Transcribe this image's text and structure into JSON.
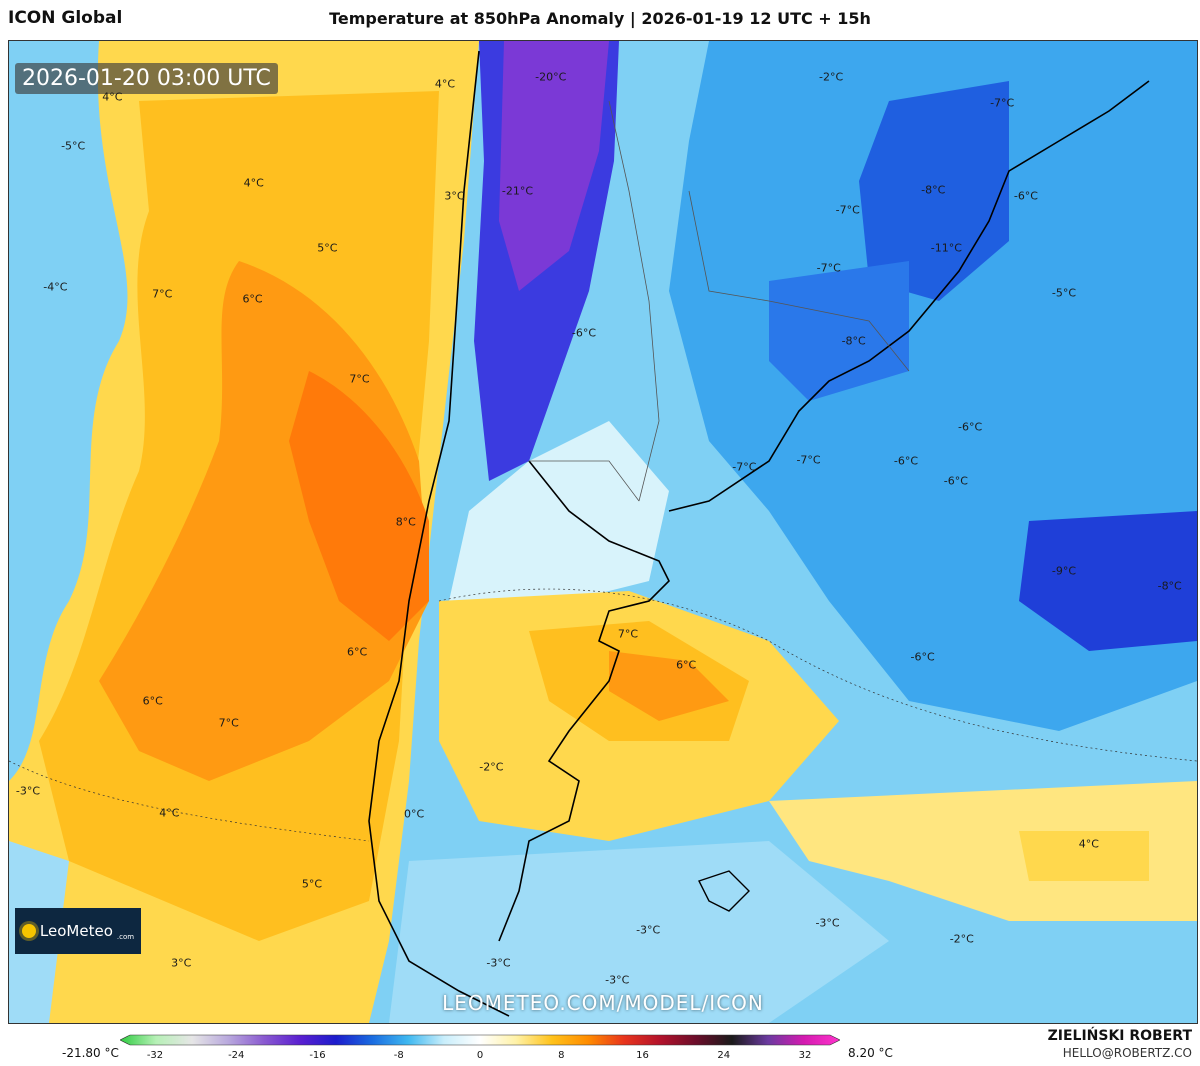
{
  "header": {
    "model": "ICON Global",
    "title": "Temperature at 850hPa Anomaly | 2026-01-19 12 UTC + 15h"
  },
  "map": {
    "valid_time": "2026-01-20 03:00 UTC",
    "watermark": "LEOMETEO.COM/MODEL/ICON",
    "logo_text": "LeoMeteo",
    "logo_sub": ".com",
    "labels": [
      {
        "text": "4°C",
        "fx": 0.087,
        "fy": 0.057
      },
      {
        "text": "4°C",
        "fx": 0.367,
        "fy": 0.044
      },
      {
        "text": "-20°C",
        "fx": 0.456,
        "fy": 0.037
      },
      {
        "text": "-2°C",
        "fx": 0.692,
        "fy": 0.037
      },
      {
        "text": "-7°C",
        "fx": 0.836,
        "fy": 0.063
      },
      {
        "text": "-5°C",
        "fx": 0.054,
        "fy": 0.107
      },
      {
        "text": "4°C",
        "fx": 0.206,
        "fy": 0.145
      },
      {
        "text": "3°C",
        "fx": 0.375,
        "fy": 0.158
      },
      {
        "text": "-21°C",
        "fx": 0.428,
        "fy": 0.153
      },
      {
        "text": "-8°C",
        "fx": 0.778,
        "fy": 0.152
      },
      {
        "text": "-6°C",
        "fx": 0.856,
        "fy": 0.158
      },
      {
        "text": "-7°C",
        "fx": 0.706,
        "fy": 0.172
      },
      {
        "text": "5°C",
        "fx": 0.268,
        "fy": 0.211
      },
      {
        "text": "-11°C",
        "fx": 0.789,
        "fy": 0.211
      },
      {
        "text": "-7°C",
        "fx": 0.69,
        "fy": 0.231
      },
      {
        "text": "-4°C",
        "fx": 0.039,
        "fy": 0.251
      },
      {
        "text": "7°C",
        "fx": 0.129,
        "fy": 0.258
      },
      {
        "text": "6°C",
        "fx": 0.205,
        "fy": 0.263
      },
      {
        "text": "-5°C",
        "fx": 0.888,
        "fy": 0.257
      },
      {
        "text": "-6°C",
        "fx": 0.484,
        "fy": 0.297
      },
      {
        "text": "-8°C",
        "fx": 0.711,
        "fy": 0.305
      },
      {
        "text": "7°C",
        "fx": 0.295,
        "fy": 0.344
      },
      {
        "text": "-6°C",
        "fx": 0.809,
        "fy": 0.393
      },
      {
        "text": "-7°C",
        "fx": 0.619,
        "fy": 0.434
      },
      {
        "text": "-7°C",
        "fx": 0.673,
        "fy": 0.427
      },
      {
        "text": "-6°C",
        "fx": 0.755,
        "fy": 0.428
      },
      {
        "text": "-6°C",
        "fx": 0.797,
        "fy": 0.448
      },
      {
        "text": "8°C",
        "fx": 0.334,
        "fy": 0.49
      },
      {
        "text": "-9°C",
        "fx": 0.888,
        "fy": 0.54
      },
      {
        "text": "-8°C",
        "fx": 0.977,
        "fy": 0.555
      },
      {
        "text": "7°C",
        "fx": 0.521,
        "fy": 0.604
      },
      {
        "text": "6°C",
        "fx": 0.57,
        "fy": 0.635
      },
      {
        "text": "6°C",
        "fx": 0.293,
        "fy": 0.622
      },
      {
        "text": "-6°C",
        "fx": 0.769,
        "fy": 0.627
      },
      {
        "text": "6°C",
        "fx": 0.121,
        "fy": 0.672
      },
      {
        "text": "7°C",
        "fx": 0.185,
        "fy": 0.695
      },
      {
        "text": "-2°C",
        "fx": 0.406,
        "fy": 0.739
      },
      {
        "text": "-3°C",
        "fx": 0.016,
        "fy": 0.764
      },
      {
        "text": "4°C",
        "fx": 0.135,
        "fy": 0.786
      },
      {
        "text": "0°C",
        "fx": 0.341,
        "fy": 0.787
      },
      {
        "text": "4°C",
        "fx": 0.909,
        "fy": 0.818
      },
      {
        "text": "5°C",
        "fx": 0.255,
        "fy": 0.858
      },
      {
        "text": "-3°C",
        "fx": 0.689,
        "fy": 0.898
      },
      {
        "text": "-3°C",
        "fx": 0.538,
        "fy": 0.905
      },
      {
        "text": "-2°C",
        "fx": 0.802,
        "fy": 0.914
      },
      {
        "text": "3°C",
        "fx": 0.145,
        "fy": 0.939
      },
      {
        "text": "-3°C",
        "fx": 0.412,
        "fy": 0.939
      },
      {
        "text": "-3°C",
        "fx": 0.512,
        "fy": 0.956
      }
    ]
  },
  "colorbar": {
    "min_label": "-21.80 °C",
    "max_label": "8.20 °C",
    "ticks": [
      "-32",
      "-24",
      "-16",
      "-8",
      "0",
      "8",
      "16",
      "24",
      "32"
    ],
    "colors": [
      "#2ecc40",
      "#b6f0b6",
      "#e6e6e6",
      "#b9a9dd",
      "#8a5ad0",
      "#5a1fd0",
      "#1c1ccc",
      "#1a6be0",
      "#3fb8f0",
      "#c9eefb",
      "#ffffff",
      "#fff2a8",
      "#ffc21a",
      "#ff8c00",
      "#e8341c",
      "#b3122b",
      "#6b0d2a",
      "#1a1a1a",
      "#6b3aa0",
      "#d41ab0",
      "#ff33cc"
    ]
  },
  "credits": {
    "author": "ZIELIŃSKI ROBERT",
    "email": "HELLO@ROBERTZ.CO"
  }
}
